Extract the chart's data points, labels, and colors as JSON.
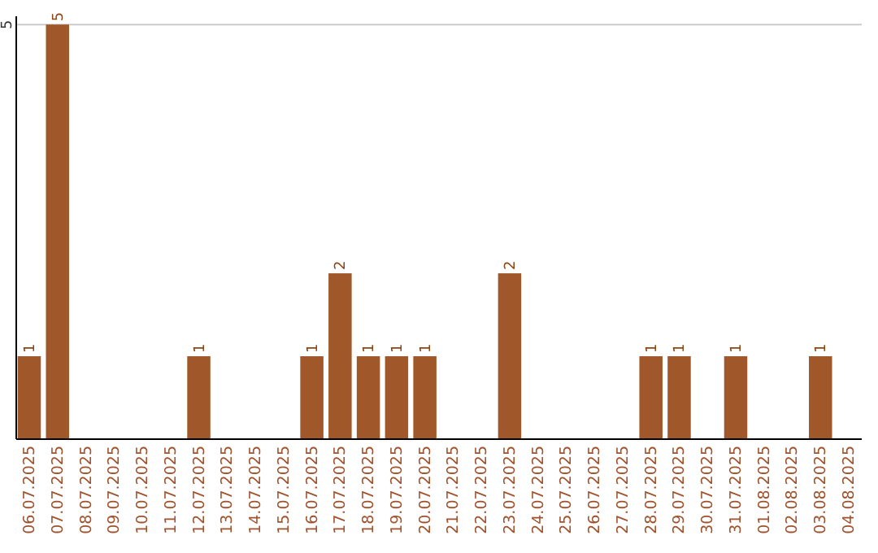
{
  "chart_data": {
    "type": "bar",
    "categories": [
      "06.07.2025",
      "07.07.2025",
      "08.07.2025",
      "09.07.2025",
      "10.07.2025",
      "11.07.2025",
      "12.07.2025",
      "13.07.2025",
      "14.07.2025",
      "15.07.2025",
      "16.07.2025",
      "17.07.2025",
      "18.07.2025",
      "19.07.2025",
      "20.07.2025",
      "21.07.2025",
      "22.07.2025",
      "23.07.2025",
      "24.07.2025",
      "25.07.2025",
      "26.07.2025",
      "27.07.2025",
      "28.07.2025",
      "29.07.2025",
      "30.07.2025",
      "31.07.2025",
      "01.08.2025",
      "02.08.2025",
      "03.08.2025",
      "04.08.2025"
    ],
    "values": [
      1,
      5,
      0,
      0,
      0,
      0,
      1,
      0,
      0,
      0,
      1,
      2,
      1,
      1,
      1,
      0,
      0,
      2,
      0,
      0,
      0,
      0,
      1,
      1,
      0,
      1,
      0,
      0,
      1,
      0
    ],
    "value_labels": [
      "1",
      "5",
      null,
      null,
      null,
      null,
      "1",
      null,
      null,
      null,
      "1",
      "2",
      "1",
      "1",
      "1",
      null,
      null,
      "2",
      null,
      null,
      null,
      null,
      "1",
      "1",
      null,
      "1",
      null,
      null,
      "1",
      null
    ],
    "color": "#a0582a",
    "ylim": [
      0,
      5.1
    ],
    "yticks": [
      5
    ],
    "grid": "y"
  }
}
